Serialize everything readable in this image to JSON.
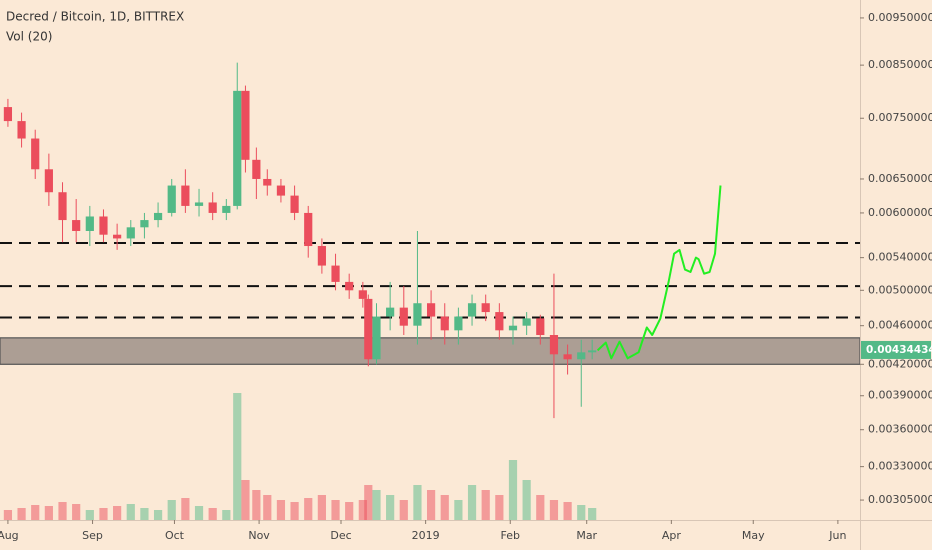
{
  "chart_data": {
    "type": "candlestick",
    "title": "Decred / Bitcoin, 1D, BITTREX",
    "subtitle": "Vol (20)",
    "log_scale": true,
    "up_color": "#53b987",
    "down_color": "#eb4d5c",
    "xlim": [
      -2.9,
      312.1
    ],
    "xticks": [
      {
        "value": 0,
        "label": "Aug"
      },
      {
        "value": 31,
        "label": "Sep"
      },
      {
        "value": 61,
        "label": "Oct"
      },
      {
        "value": 92,
        "label": "Nov"
      },
      {
        "value": 122,
        "label": "Dec"
      },
      {
        "value": 153,
        "label": "2019"
      },
      {
        "value": 184,
        "label": "Feb"
      },
      {
        "value": 212,
        "label": "Mar"
      },
      {
        "value": 243,
        "label": "Apr"
      },
      {
        "value": 273,
        "label": "May"
      },
      {
        "value": 304,
        "label": "Jun"
      }
    ],
    "ylim": [
      0.00291,
      0.00991
    ],
    "yticks": [
      {
        "value": 0.0095,
        "label": "0.00950000"
      },
      {
        "value": 0.0085,
        "label": "0.00850000"
      },
      {
        "value": 0.0075,
        "label": "0.00750000"
      },
      {
        "value": 0.0065,
        "label": "0.00650000"
      },
      {
        "value": 0.006,
        "label": "0.00600000"
      },
      {
        "value": 0.0054,
        "label": "0.00540000"
      },
      {
        "value": 0.005,
        "label": "0.00500000"
      },
      {
        "value": 0.0046,
        "label": "0.00460000"
      },
      {
        "value": 0.0042,
        "label": "0.00420000"
      },
      {
        "value": 0.0039,
        "label": "0.00390000"
      },
      {
        "value": 0.0036,
        "label": "0.00360000"
      },
      {
        "value": 0.0033,
        "label": "0.00330000"
      },
      {
        "value": 0.00305,
        "label": "0.00305000"
      }
    ],
    "candles": {
      "x": [
        0,
        5,
        10,
        15,
        20,
        25,
        30,
        35,
        40,
        45,
        50,
        55,
        60,
        65,
        70,
        75,
        80,
        84,
        87,
        91,
        95,
        100,
        105,
        110,
        115,
        120,
        125,
        130,
        132,
        135,
        140,
        145,
        150,
        155,
        160,
        165,
        170,
        175,
        180,
        185,
        190,
        195,
        200,
        205,
        210,
        214
      ],
      "open": [
        0.0077,
        0.00745,
        0.00715,
        0.00665,
        0.0063,
        0.0059,
        0.00575,
        0.00595,
        0.0057,
        0.00565,
        0.0058,
        0.0059,
        0.006,
        0.0064,
        0.0061,
        0.00615,
        0.006,
        0.0061,
        0.008,
        0.0068,
        0.0065,
        0.0064,
        0.00625,
        0.006,
        0.00555,
        0.0053,
        0.0051,
        0.005,
        0.0049,
        0.00425,
        0.0047,
        0.0048,
        0.0046,
        0.00485,
        0.0047,
        0.00455,
        0.0047,
        0.00485,
        0.00475,
        0.00455,
        0.0046,
        0.00468,
        0.0045,
        0.0043,
        0.00425,
        0.00432
      ],
      "high": [
        0.00785,
        0.0076,
        0.0073,
        0.0069,
        0.00645,
        0.0062,
        0.0061,
        0.00605,
        0.00585,
        0.0059,
        0.006,
        0.00615,
        0.0065,
        0.00665,
        0.00635,
        0.0063,
        0.0062,
        0.00855,
        0.0081,
        0.007,
        0.00665,
        0.0065,
        0.0064,
        0.0061,
        0.00565,
        0.00545,
        0.0052,
        0.0051,
        0.00495,
        0.00485,
        0.0051,
        0.00505,
        0.00575,
        0.005,
        0.00485,
        0.0048,
        0.00495,
        0.00495,
        0.00485,
        0.0047,
        0.00475,
        0.00472,
        0.0052,
        0.0044,
        0.00445,
        0.00445
      ],
      "low": [
        0.00735,
        0.007,
        0.0065,
        0.0061,
        0.0056,
        0.0056,
        0.00555,
        0.0056,
        0.0055,
        0.00555,
        0.00565,
        0.0058,
        0.00595,
        0.006,
        0.00595,
        0.0059,
        0.0059,
        0.00605,
        0.0066,
        0.0062,
        0.00625,
        0.00615,
        0.0059,
        0.0054,
        0.0052,
        0.005,
        0.0049,
        0.0048,
        0.00418,
        0.0042,
        0.00455,
        0.0045,
        0.0044,
        0.00445,
        0.0044,
        0.0044,
        0.0046,
        0.00465,
        0.00445,
        0.0044,
        0.0045,
        0.0044,
        0.0037,
        0.0041,
        0.0038,
        0.00425
      ],
      "close": [
        0.00745,
        0.00715,
        0.00665,
        0.0063,
        0.0059,
        0.00575,
        0.00595,
        0.0057,
        0.00565,
        0.0058,
        0.0059,
        0.006,
        0.0064,
        0.0061,
        0.00615,
        0.006,
        0.0061,
        0.008,
        0.0068,
        0.0065,
        0.0064,
        0.00625,
        0.006,
        0.00555,
        0.0053,
        0.0051,
        0.005,
        0.0049,
        0.00425,
        0.0047,
        0.0048,
        0.0046,
        0.00485,
        0.0047,
        0.00455,
        0.0047,
        0.00485,
        0.00475,
        0.00455,
        0.0046,
        0.00468,
        0.0045,
        0.0043,
        0.00425,
        0.00432,
        0.00434
      ]
    },
    "volume": {
      "values": [
        10,
        12,
        15,
        14,
        18,
        16,
        10,
        12,
        14,
        16,
        12,
        10,
        20,
        22,
        14,
        12,
        10,
        127,
        40,
        30,
        25,
        20,
        18,
        22,
        25,
        20,
        18,
        20,
        35,
        30,
        25,
        20,
        35,
        30,
        25,
        20,
        35,
        30,
        25,
        60,
        40,
        25,
        20,
        18,
        15,
        12
      ],
      "ylim": [
        0,
        520
      ]
    },
    "levels": {
      "color": "#111111",
      "values": [
        0.00559,
        0.00505,
        0.00469
      ]
    },
    "zone": {
      "color": "#9e9188",
      "values": [
        0.0042,
        0.00447
      ]
    },
    "projection": {
      "color": "#22ee22",
      "x": [
        216,
        219,
        221,
        224,
        227,
        231,
        234,
        236,
        239,
        242,
        244,
        246,
        248,
        250,
        252,
        253,
        255,
        257,
        259,
        261
      ],
      "values": [
        0.00434,
        0.00442,
        0.00426,
        0.00443,
        0.00426,
        0.00432,
        0.00458,
        0.0045,
        0.00468,
        0.0051,
        0.00545,
        0.0055,
        0.00525,
        0.00522,
        0.0054,
        0.00538,
        0.0052,
        0.00522,
        0.00545,
        0.0064
      ]
    },
    "last_price": {
      "value": 0.00434434,
      "label": "0.00434434",
      "color": "#53b987"
    }
  }
}
